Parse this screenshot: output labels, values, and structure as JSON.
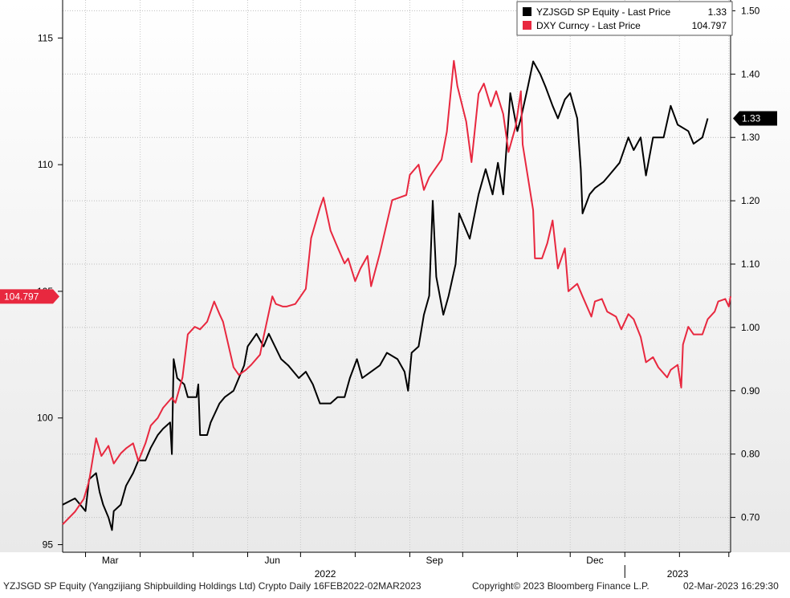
{
  "chart_data": {
    "type": "line",
    "legend": {
      "placement": "top-right",
      "entries": [
        {
          "label": "YZJSGD SP Equity - Last Price",
          "value": "1.33",
          "color": "#000000"
        },
        {
          "label": "DXY Curncy - Last Price",
          "value": "104.797",
          "color": "#e8283f"
        }
      ]
    },
    "left_axis": {
      "ticks": [
        "95",
        "100",
        "105",
        "110",
        "115"
      ],
      "ylim": [
        94.7,
        116.5
      ]
    },
    "right_axis": {
      "ticks": [
        "0.70",
        "0.80",
        "0.90",
        "1.00",
        "1.10",
        "1.20",
        "1.30",
        "1.40",
        "1.50"
      ],
      "ylim": [
        0.645,
        1.517
      ]
    },
    "x_axis": {
      "month_labels": [
        {
          "label": "Mar",
          "date": "2022-03-15"
        },
        {
          "label": "Jun",
          "date": "2022-06-15"
        },
        {
          "label": "Sep",
          "date": "2022-09-15"
        },
        {
          "label": "Dec",
          "date": "2022-12-15"
        }
      ],
      "year_labels": [
        {
          "label": "2022",
          "date": "2022-07-15"
        },
        {
          "label": "2023",
          "date": "2023-01-31"
        }
      ],
      "month_ticks": [
        "2022-03-01",
        "2022-04-01",
        "2022-05-01",
        "2022-06-01",
        "2022-07-01",
        "2022-08-01",
        "2022-09-01",
        "2022-10-01",
        "2022-11-01",
        "2022-12-01",
        "2023-01-01",
        "2023-02-01",
        "2023-03-01"
      ],
      "year_divider": "2023-01-01",
      "range": [
        "2022-02-16",
        "2023-03-02"
      ]
    },
    "last_value_tags": [
      {
        "axis": "right",
        "text": "1.33",
        "value": 1.33,
        "color": "#000000"
      },
      {
        "axis": "left",
        "text": "104.797",
        "value": 104.797,
        "color": "#e8283f"
      }
    ],
    "grid": true,
    "series": [
      {
        "name": "YZJSGD SP Equity - Last Price",
        "axis": "right",
        "color": "#000000",
        "points": [
          [
            "2022-02-16",
            0.72
          ],
          [
            "2022-02-23",
            0.73
          ],
          [
            "2022-03-01",
            0.71
          ],
          [
            "2022-03-03",
            0.76
          ],
          [
            "2022-03-07",
            0.77
          ],
          [
            "2022-03-09",
            0.74
          ],
          [
            "2022-03-11",
            0.72
          ],
          [
            "2022-03-14",
            0.7
          ],
          [
            "2022-03-16",
            0.68
          ],
          [
            "2022-03-17",
            0.71
          ],
          [
            "2022-03-21",
            0.72
          ],
          [
            "2022-03-24",
            0.75
          ],
          [
            "2022-03-28",
            0.77
          ],
          [
            "2022-03-31",
            0.79
          ],
          [
            "2022-04-04",
            0.79
          ],
          [
            "2022-04-07",
            0.81
          ],
          [
            "2022-04-11",
            0.83
          ],
          [
            "2022-04-14",
            0.84
          ],
          [
            "2022-04-18",
            0.85
          ],
          [
            "2022-04-19",
            0.8
          ],
          [
            "2022-04-20",
            0.95
          ],
          [
            "2022-04-22",
            0.92
          ],
          [
            "2022-04-26",
            0.91
          ],
          [
            "2022-04-28",
            0.89
          ],
          [
            "2022-05-02",
            0.89
          ],
          [
            "2022-05-03",
            0.89
          ],
          [
            "2022-05-04",
            0.91
          ],
          [
            "2022-05-05",
            0.83
          ],
          [
            "2022-05-09",
            0.83
          ],
          [
            "2022-05-11",
            0.85
          ],
          [
            "2022-05-16",
            0.88
          ],
          [
            "2022-05-19",
            0.89
          ],
          [
            "2022-05-24",
            0.9
          ],
          [
            "2022-05-30",
            0.94
          ],
          [
            "2022-06-01",
            0.97
          ],
          [
            "2022-06-06",
            0.99
          ],
          [
            "2022-06-10",
            0.97
          ],
          [
            "2022-06-13",
            0.99
          ],
          [
            "2022-06-20",
            0.95
          ],
          [
            "2022-06-24",
            0.94
          ],
          [
            "2022-06-30",
            0.92
          ],
          [
            "2022-07-04",
            0.93
          ],
          [
            "2022-07-08",
            0.91
          ],
          [
            "2022-07-12",
            0.88
          ],
          [
            "2022-07-18",
            0.88
          ],
          [
            "2022-07-22",
            0.89
          ],
          [
            "2022-07-26",
            0.89
          ],
          [
            "2022-07-29",
            0.92
          ],
          [
            "2022-08-02",
            0.95
          ],
          [
            "2022-08-05",
            0.92
          ],
          [
            "2022-08-10",
            0.93
          ],
          [
            "2022-08-15",
            0.94
          ],
          [
            "2022-08-19",
            0.96
          ],
          [
            "2022-08-25",
            0.95
          ],
          [
            "2022-08-29",
            0.93
          ],
          [
            "2022-08-31",
            0.9
          ],
          [
            "2022-09-02",
            0.96
          ],
          [
            "2022-09-06",
            0.97
          ],
          [
            "2022-09-09",
            1.02
          ],
          [
            "2022-09-12",
            1.05
          ],
          [
            "2022-09-14",
            1.2
          ],
          [
            "2022-09-16",
            1.08
          ],
          [
            "2022-09-20",
            1.02
          ],
          [
            "2022-09-23",
            1.05
          ],
          [
            "2022-09-27",
            1.1
          ],
          [
            "2022-09-29",
            1.18
          ],
          [
            "2022-10-05",
            1.14
          ],
          [
            "2022-10-10",
            1.21
          ],
          [
            "2022-10-14",
            1.25
          ],
          [
            "2022-10-18",
            1.21
          ],
          [
            "2022-10-21",
            1.26
          ],
          [
            "2022-10-24",
            1.21
          ],
          [
            "2022-10-26",
            1.29
          ],
          [
            "2022-10-28",
            1.37
          ],
          [
            "2022-11-01",
            1.31
          ],
          [
            "2022-11-03",
            1.33
          ],
          [
            "2022-11-07",
            1.38
          ],
          [
            "2022-11-10",
            1.42
          ],
          [
            "2022-11-14",
            1.4
          ],
          [
            "2022-11-17",
            1.38
          ],
          [
            "2022-11-21",
            1.35
          ],
          [
            "2022-11-24",
            1.33
          ],
          [
            "2022-11-28",
            1.36
          ],
          [
            "2022-12-01",
            1.37
          ],
          [
            "2022-12-05",
            1.33
          ],
          [
            "2022-12-07",
            1.25
          ],
          [
            "2022-12-08",
            1.18
          ],
          [
            "2022-12-12",
            1.21
          ],
          [
            "2022-12-15",
            1.22
          ],
          [
            "2022-12-20",
            1.23
          ],
          [
            "2022-12-23",
            1.24
          ],
          [
            "2022-12-29",
            1.26
          ],
          [
            "2023-01-03",
            1.3
          ],
          [
            "2023-01-06",
            1.28
          ],
          [
            "2023-01-10",
            1.3
          ],
          [
            "2023-01-13",
            1.24
          ],
          [
            "2023-01-17",
            1.3
          ],
          [
            "2023-01-23",
            1.3
          ],
          [
            "2023-01-27",
            1.35
          ],
          [
            "2023-01-31",
            1.32
          ],
          [
            "2023-02-06",
            1.31
          ],
          [
            "2023-02-09",
            1.29
          ],
          [
            "2023-02-14",
            1.3
          ],
          [
            "2023-02-17",
            1.33
          ]
        ]
      },
      {
        "name": "DXY Curncy - Last Price",
        "axis": "left",
        "color": "#e8283f",
        "points": [
          [
            "2022-02-16",
            95.8
          ],
          [
            "2022-02-23",
            96.3
          ],
          [
            "2022-02-28",
            96.8
          ],
          [
            "2022-03-03",
            97.5
          ],
          [
            "2022-03-07",
            99.2
          ],
          [
            "2022-03-10",
            98.5
          ],
          [
            "2022-03-14",
            98.9
          ],
          [
            "2022-03-17",
            98.2
          ],
          [
            "2022-03-21",
            98.6
          ],
          [
            "2022-03-24",
            98.8
          ],
          [
            "2022-03-28",
            99.0
          ],
          [
            "2022-03-31",
            98.3
          ],
          [
            "2022-04-04",
            99.0
          ],
          [
            "2022-04-07",
            99.7
          ],
          [
            "2022-04-11",
            100.0
          ],
          [
            "2022-04-14",
            100.4
          ],
          [
            "2022-04-19",
            100.8
          ],
          [
            "2022-04-21",
            100.6
          ],
          [
            "2022-04-25",
            101.6
          ],
          [
            "2022-04-28",
            103.3
          ],
          [
            "2022-05-02",
            103.6
          ],
          [
            "2022-05-05",
            103.5
          ],
          [
            "2022-05-09",
            103.8
          ],
          [
            "2022-05-13",
            104.6
          ],
          [
            "2022-05-16",
            104.1
          ],
          [
            "2022-05-18",
            103.8
          ],
          [
            "2022-05-24",
            102.0
          ],
          [
            "2022-05-27",
            101.7
          ],
          [
            "2022-05-31",
            101.9
          ],
          [
            "2022-06-03",
            102.1
          ],
          [
            "2022-06-08",
            102.5
          ],
          [
            "2022-06-10",
            103.2
          ],
          [
            "2022-06-15",
            104.8
          ],
          [
            "2022-06-17",
            104.5
          ],
          [
            "2022-06-21",
            104.4
          ],
          [
            "2022-06-23",
            104.4
          ],
          [
            "2022-06-28",
            104.5
          ],
          [
            "2022-06-30",
            104.7
          ],
          [
            "2022-07-04",
            105.1
          ],
          [
            "2022-07-07",
            107.1
          ],
          [
            "2022-07-12",
            108.3
          ],
          [
            "2022-07-14",
            108.7
          ],
          [
            "2022-07-18",
            107.4
          ],
          [
            "2022-07-21",
            106.9
          ],
          [
            "2022-07-26",
            106.1
          ],
          [
            "2022-07-28",
            106.3
          ],
          [
            "2022-08-01",
            105.4
          ],
          [
            "2022-08-04",
            105.9
          ],
          [
            "2022-08-08",
            106.4
          ],
          [
            "2022-08-10",
            105.2
          ],
          [
            "2022-08-15",
            106.5
          ],
          [
            "2022-08-18",
            107.4
          ],
          [
            "2022-08-22",
            108.6
          ],
          [
            "2022-08-26",
            108.7
          ],
          [
            "2022-08-30",
            108.8
          ],
          [
            "2022-09-01",
            109.6
          ],
          [
            "2022-09-06",
            110.0
          ],
          [
            "2022-09-09",
            109.0
          ],
          [
            "2022-09-12",
            109.5
          ],
          [
            "2022-09-14",
            109.7
          ],
          [
            "2022-09-19",
            110.2
          ],
          [
            "2022-09-22",
            111.3
          ],
          [
            "2022-09-26",
            114.1
          ],
          [
            "2022-09-28",
            113.1
          ],
          [
            "2022-10-03",
            111.7
          ],
          [
            "2022-10-06",
            110.1
          ],
          [
            "2022-10-10",
            112.8
          ],
          [
            "2022-10-13",
            113.2
          ],
          [
            "2022-10-17",
            112.3
          ],
          [
            "2022-10-20",
            112.9
          ],
          [
            "2022-10-24",
            112.0
          ],
          [
            "2022-10-27",
            110.5
          ],
          [
            "2022-10-31",
            111.5
          ],
          [
            "2022-11-03",
            112.9
          ],
          [
            "2022-11-04",
            110.8
          ],
          [
            "2022-11-10",
            108.2
          ],
          [
            "2022-11-11",
            106.3
          ],
          [
            "2022-11-15",
            106.3
          ],
          [
            "2022-11-18",
            106.9
          ],
          [
            "2022-11-21",
            107.8
          ],
          [
            "2022-11-24",
            105.9
          ],
          [
            "2022-11-28",
            106.7
          ],
          [
            "2022-11-30",
            105.0
          ],
          [
            "2022-12-05",
            105.3
          ],
          [
            "2022-12-08",
            104.8
          ],
          [
            "2022-12-13",
            104.0
          ],
          [
            "2022-12-15",
            104.6
          ],
          [
            "2022-12-19",
            104.7
          ],
          [
            "2022-12-22",
            104.2
          ],
          [
            "2022-12-27",
            104.0
          ],
          [
            "2022-12-30",
            103.5
          ],
          [
            "2023-01-03",
            104.1
          ],
          [
            "2023-01-06",
            103.9
          ],
          [
            "2023-01-10",
            103.2
          ],
          [
            "2023-01-13",
            102.2
          ],
          [
            "2023-01-17",
            102.4
          ],
          [
            "2023-01-20",
            102.0
          ],
          [
            "2023-01-25",
            101.6
          ],
          [
            "2023-01-27",
            101.9
          ],
          [
            "2023-01-31",
            102.1
          ],
          [
            "2023-02-02",
            101.2
          ],
          [
            "2023-02-03",
            102.9
          ],
          [
            "2023-02-06",
            103.6
          ],
          [
            "2023-02-09",
            103.3
          ],
          [
            "2023-02-14",
            103.3
          ],
          [
            "2023-02-17",
            103.9
          ],
          [
            "2023-02-21",
            104.2
          ],
          [
            "2023-02-23",
            104.6
          ],
          [
            "2023-02-27",
            104.7
          ],
          [
            "2023-03-01",
            104.4
          ],
          [
            "2023-03-02",
            104.8
          ]
        ]
      }
    ]
  },
  "footer": {
    "description": "YZJSGD SP Equity (Yangzijiang Shipbuilding Holdings Ltd) Crypto  Daily 16FEB2022-02MAR2023",
    "copyright": "Copyright© 2023 Bloomberg Finance L.P.",
    "timestamp": "02-Mar-2023 16:29:30"
  }
}
